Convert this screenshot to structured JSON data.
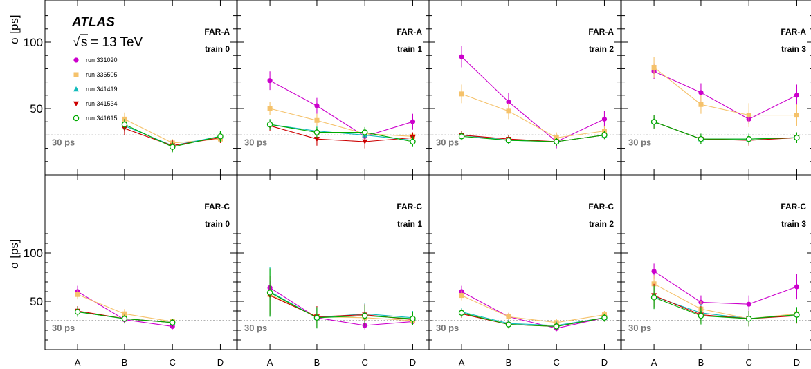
{
  "chart_data": {
    "type": "scatter",
    "experiment_label": "ATLAS",
    "sqrt_s_symbol": "s",
    "energy_label": "= 13 TeV",
    "ylabel": "σ [ps]",
    "ylim": [
      0,
      128
    ],
    "yticks": [
      50,
      100
    ],
    "categories": [
      "A",
      "B",
      "C",
      "D"
    ],
    "reference": {
      "value": 30,
      "label": "30 ps"
    },
    "series_style": [
      {
        "name": "run 331020",
        "color": "#cc00cc",
        "marker": "circle"
      },
      {
        "name": "run 336505",
        "color": "#f5c26b",
        "marker": "square"
      },
      {
        "name": "run 341419",
        "color": "#11bbbb",
        "marker": "triangle-up"
      },
      {
        "name": "run 341534",
        "color": "#cc0000",
        "marker": "triangle-down"
      },
      {
        "name": "run 341615",
        "color": "#00aa00",
        "marker": "open-circle"
      }
    ],
    "panels": [
      {
        "side": "FAR-A",
        "train": "train 0",
        "series": [
          {
            "name": "run 331020",
            "values": [
              null,
              null,
              null,
              null
            ],
            "errors": [
              0,
              0,
              0,
              0
            ]
          },
          {
            "name": "run 336505",
            "values": [
              null,
              42,
              24,
              27
            ],
            "errors": [
              0,
              5,
              3,
              3
            ]
          },
          {
            "name": "run 341419",
            "values": [
              null,
              37,
              22,
              29
            ],
            "errors": [
              0,
              5,
              4,
              4
            ]
          },
          {
            "name": "run 341534",
            "values": [
              null,
              35,
              22,
              28
            ],
            "errors": [
              0,
              5,
              4,
              4
            ]
          },
          {
            "name": "run 341615",
            "values": [
              null,
              38,
              21,
              29
            ],
            "errors": [
              0,
              4,
              4,
              4
            ]
          }
        ]
      },
      {
        "side": "FAR-A",
        "train": "train 1",
        "series": [
          {
            "name": "run 331020",
            "values": [
              71,
              52,
              29,
              40
            ],
            "errors": [
              7,
              6,
              3,
              6
            ]
          },
          {
            "name": "run 336505",
            "values": [
              50,
              41,
              31,
              29
            ],
            "errors": [
              5,
              5,
              4,
              3
            ]
          },
          {
            "name": "run 341419",
            "values": [
              38,
              33,
              30,
              26
            ],
            "errors": [
              4,
              4,
              4,
              4
            ]
          },
          {
            "name": "run 341534",
            "values": [
              37,
              27,
              25,
              28
            ],
            "errors": [
              4,
              5,
              5,
              4
            ]
          },
          {
            "name": "run 341615",
            "values": [
              38,
              32,
              32,
              25
            ],
            "errors": [
              4,
              4,
              4,
              4
            ]
          }
        ]
      },
      {
        "side": "FAR-A",
        "train": "train 2",
        "series": [
          {
            "name": "run 331020",
            "values": [
              89,
              55,
              25,
              42
            ],
            "errors": [
              8,
              7,
              5,
              6
            ]
          },
          {
            "name": "run 336505",
            "values": [
              61,
              48,
              28,
              33
            ],
            "errors": [
              7,
              6,
              4,
              4
            ]
          },
          {
            "name": "run 341419",
            "values": [
              30,
              26,
              25,
              30
            ],
            "errors": [
              3,
              3,
              3,
              3
            ]
          },
          {
            "name": "run 341534",
            "values": [
              30,
              27,
              25,
              30
            ],
            "errors": [
              3,
              3,
              3,
              3
            ]
          },
          {
            "name": "run 341615",
            "values": [
              29,
              26,
              25,
              30
            ],
            "errors": [
              3,
              3,
              3,
              3
            ]
          }
        ]
      },
      {
        "side": "FAR-A",
        "train": "train 3",
        "series": [
          {
            "name": "run 331020",
            "values": [
              78,
              62,
              42,
              60
            ],
            "errors": [
              6,
              7,
              4,
              8
            ]
          },
          {
            "name": "run 336505",
            "values": [
              81,
              53,
              45,
              45
            ],
            "errors": [
              8,
              7,
              9,
              8
            ]
          },
          {
            "name": "run 341419",
            "values": [
              40,
              27,
              27,
              28
            ],
            "errors": [
              5,
              4,
              4,
              4
            ]
          },
          {
            "name": "run 341534",
            "values": [
              40,
              27,
              26,
              28
            ],
            "errors": [
              5,
              4,
              4,
              4
            ]
          },
          {
            "name": "run 341615",
            "values": [
              40,
              27,
              27,
              28
            ],
            "errors": [
              5,
              4,
              4,
              4
            ]
          }
        ]
      },
      {
        "side": "FAR-C",
        "train": "train 0",
        "series": [
          {
            "name": "run 331020",
            "values": [
              60,
              31,
              24,
              null
            ],
            "errors": [
              6,
              4,
              3,
              0
            ]
          },
          {
            "name": "run 336505",
            "values": [
              57,
              37,
              29,
              null
            ],
            "errors": [
              5,
              5,
              3,
              0
            ]
          },
          {
            "name": "run 341419",
            "values": [
              39,
              32,
              28,
              null
            ],
            "errors": [
              5,
              4,
              4,
              0
            ]
          },
          {
            "name": "run 341534",
            "values": [
              40,
              32,
              28,
              null
            ],
            "errors": [
              5,
              4,
              4,
              0
            ]
          },
          {
            "name": "run 341615",
            "values": [
              39,
              32,
              28,
              null
            ],
            "errors": [
              5,
              4,
              4,
              0
            ]
          }
        ]
      },
      {
        "side": "FAR-C",
        "train": "train 1",
        "series": [
          {
            "name": "run 331020",
            "values": [
              64,
              33,
              25,
              29
            ],
            "errors": [
              7,
              5,
              4,
              4
            ]
          },
          {
            "name": "run 336505",
            "values": [
              57,
              34,
              33,
              30
            ],
            "errors": [
              7,
              5,
              5,
              4
            ]
          },
          {
            "name": "run 341419",
            "values": [
              60,
              33,
              37,
              33
            ],
            "errors": [
              25,
              11,
              11,
              7
            ]
          },
          {
            "name": "run 341534",
            "values": [
              56,
              34,
              36,
              31
            ],
            "errors": [
              20,
              11,
              11,
              6
            ]
          },
          {
            "name": "run 341615",
            "values": [
              59,
              33,
              35,
              32
            ],
            "errors": [
              25,
              11,
              11,
              7
            ]
          }
        ]
      },
      {
        "side": "FAR-C",
        "train": "train 2",
        "series": [
          {
            "name": "run 331020",
            "values": [
              60,
              34,
              22,
              33
            ],
            "errors": [
              6,
              4,
              3,
              4
            ]
          },
          {
            "name": "run 336505",
            "values": [
              56,
              34,
              28,
              36
            ],
            "errors": [
              5,
              4,
              4,
              4
            ]
          },
          {
            "name": "run 341419",
            "values": [
              39,
              27,
              25,
              33
            ],
            "errors": [
              4,
              4,
              4,
              4
            ]
          },
          {
            "name": "run 341534",
            "values": [
              37,
              26,
              24,
              33
            ],
            "errors": [
              4,
              4,
              4,
              4
            ]
          },
          {
            "name": "run 341615",
            "values": [
              38,
              26,
              24,
              33
            ],
            "errors": [
              4,
              4,
              4,
              4
            ]
          }
        ]
      },
      {
        "side": "FAR-C",
        "train": "train 3",
        "series": [
          {
            "name": "run 331020",
            "values": [
              81,
              49,
              47,
              65
            ],
            "errors": [
              8,
              7,
              9,
              13
            ]
          },
          {
            "name": "run 336505",
            "values": [
              68,
              42,
              32,
              37
            ],
            "errors": [
              9,
              8,
              6,
              6
            ]
          },
          {
            "name": "run 341419",
            "values": [
              55,
              38,
              32,
              36
            ],
            "errors": [
              12,
              9,
              8,
              8
            ]
          },
          {
            "name": "run 341534",
            "values": [
              56,
              36,
              32,
              35
            ],
            "errors": [
              12,
              9,
              8,
              8
            ]
          },
          {
            "name": "run 341615",
            "values": [
              54,
              35,
              32,
              36
            ],
            "errors": [
              12,
              9,
              8,
              8
            ]
          }
        ]
      }
    ]
  }
}
